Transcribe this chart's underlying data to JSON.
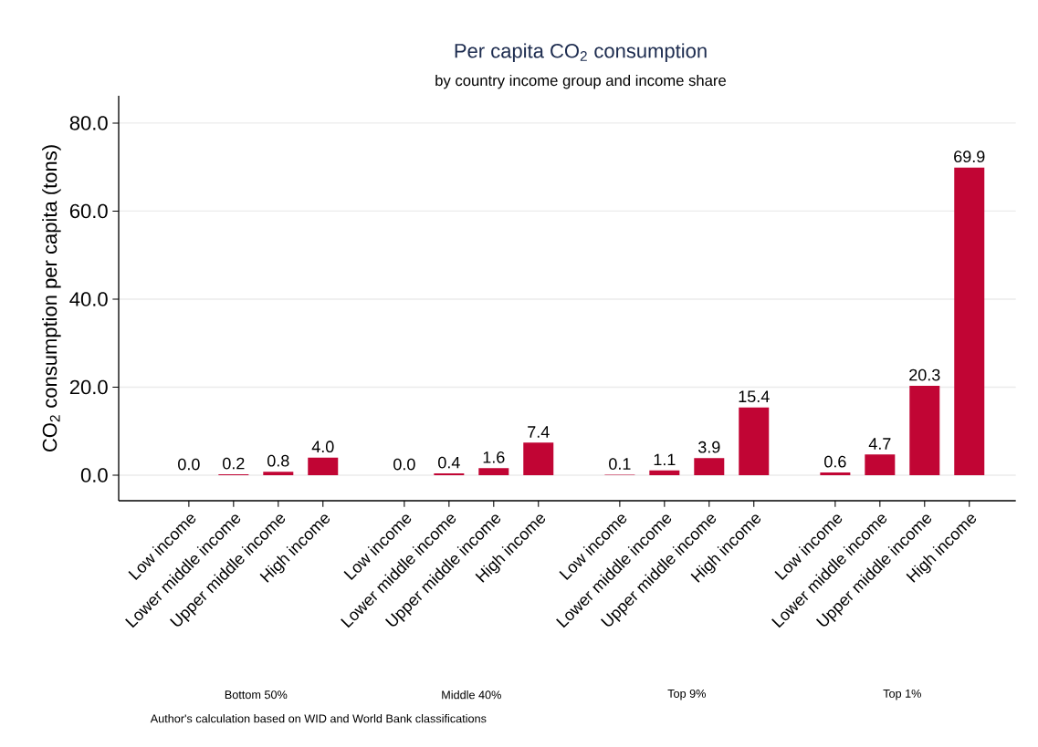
{
  "chart_data": {
    "type": "bar",
    "title": "Per capita CO$_{2}$ consumption",
    "subtitle": "by country income group and income share",
    "ylabel": "CO$_{2}$ consumption per capita (tons)",
    "categories": [
      "Low income",
      "Lower middle income",
      "Upper middle income",
      "High income",
      "Low income",
      "Lower middle income",
      "Upper middle income",
      "High income",
      "Low income",
      "Lower middle income",
      "Upper middle income",
      "High income",
      "Low income",
      "Lower middle income",
      "Upper middle income",
      "High income"
    ],
    "values": [
      0.0,
      0.2,
      0.8,
      4.0,
      0.0,
      0.4,
      1.6,
      7.4,
      0.1,
      1.1,
      3.9,
      15.4,
      0.6,
      4.7,
      20.3,
      69.9
    ],
    "value_labels": [
      "0.0",
      "0.2",
      "0.8",
      "4.0",
      "0.0",
      "0.4",
      "1.6",
      "7.4",
      "0.1",
      "1.1",
      "3.9",
      "15.4",
      "0.6",
      "4.7",
      "20.3",
      "69.9"
    ],
    "color": "#c10534",
    "ylim": [
      -5.8,
      86.2
    ],
    "yticks": [
      {
        "value": 0,
        "label": "0.0"
      },
      {
        "value": 20,
        "label": "20.0"
      },
      {
        "value": 40,
        "label": "40.0"
      },
      {
        "value": 60,
        "label": "60.0"
      },
      {
        "value": 80,
        "label": "80.0"
      }
    ],
    "grid": "y",
    "annotations": [
      "Bottom 50%",
      "Middle 40%",
      "Top 9%",
      "Top 1%",
      "Author's calculation based on WID and World Bank classifications"
    ]
  }
}
